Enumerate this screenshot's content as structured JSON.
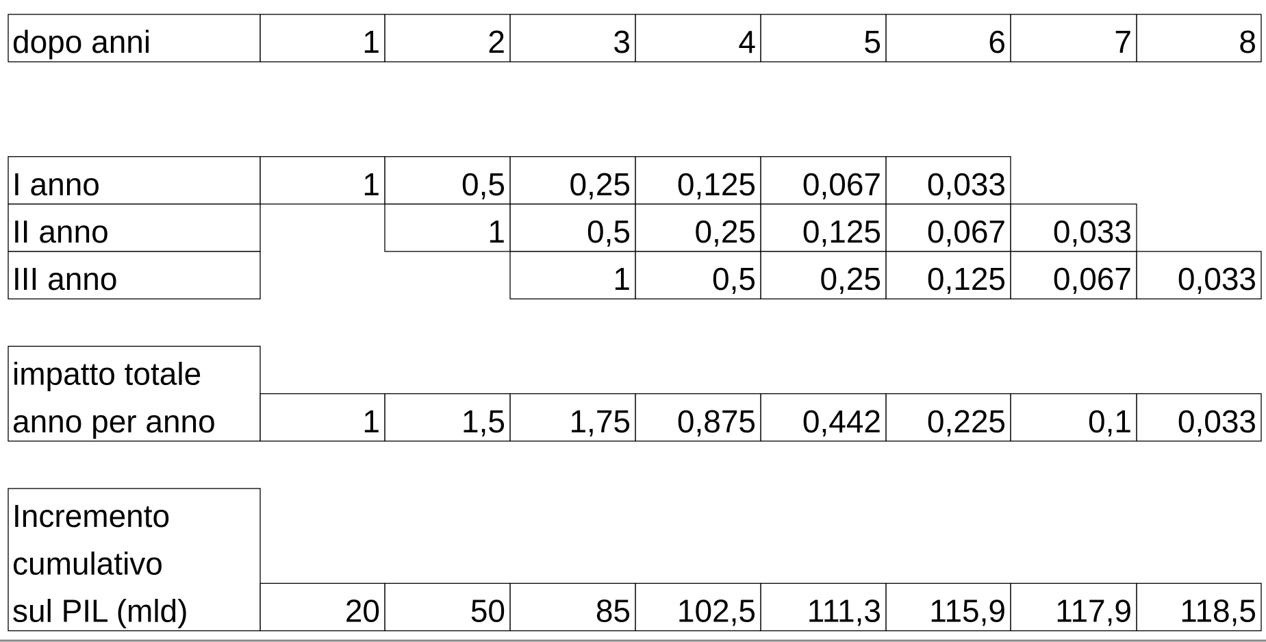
{
  "header": {
    "label": "dopo anni",
    "years": [
      1,
      2,
      3,
      4,
      5,
      6,
      7,
      8
    ]
  },
  "rows": [
    {
      "label": [
        "I anno"
      ],
      "values": [
        "1",
        "0,5",
        "0,25",
        "0,125",
        "0,067",
        "0,033",
        null,
        null
      ]
    },
    {
      "label": [
        "II anno"
      ],
      "values": [
        null,
        "1",
        "0,5",
        "0,25",
        "0,125",
        "0,067",
        "0,033",
        null
      ]
    },
    {
      "label": [
        "III anno"
      ],
      "values": [
        null,
        null,
        "1",
        "0,5",
        "0,25",
        "0,125",
        "0,067",
        "0,033"
      ]
    }
  ],
  "total": {
    "label": [
      "impatto totale",
      "anno per anno"
    ],
    "values": [
      "1",
      "1,5",
      "1,75",
      "0,875",
      "0,442",
      "0,225",
      "0,1",
      "0,033"
    ]
  },
  "cumulative": {
    "label": [
      "Incremento",
      "cumulativo",
      "sul PIL (mld)"
    ],
    "values": [
      "20",
      "50",
      "85",
      "102,5",
      "111,3",
      "115,9",
      "117,9",
      "118,5"
    ]
  }
}
